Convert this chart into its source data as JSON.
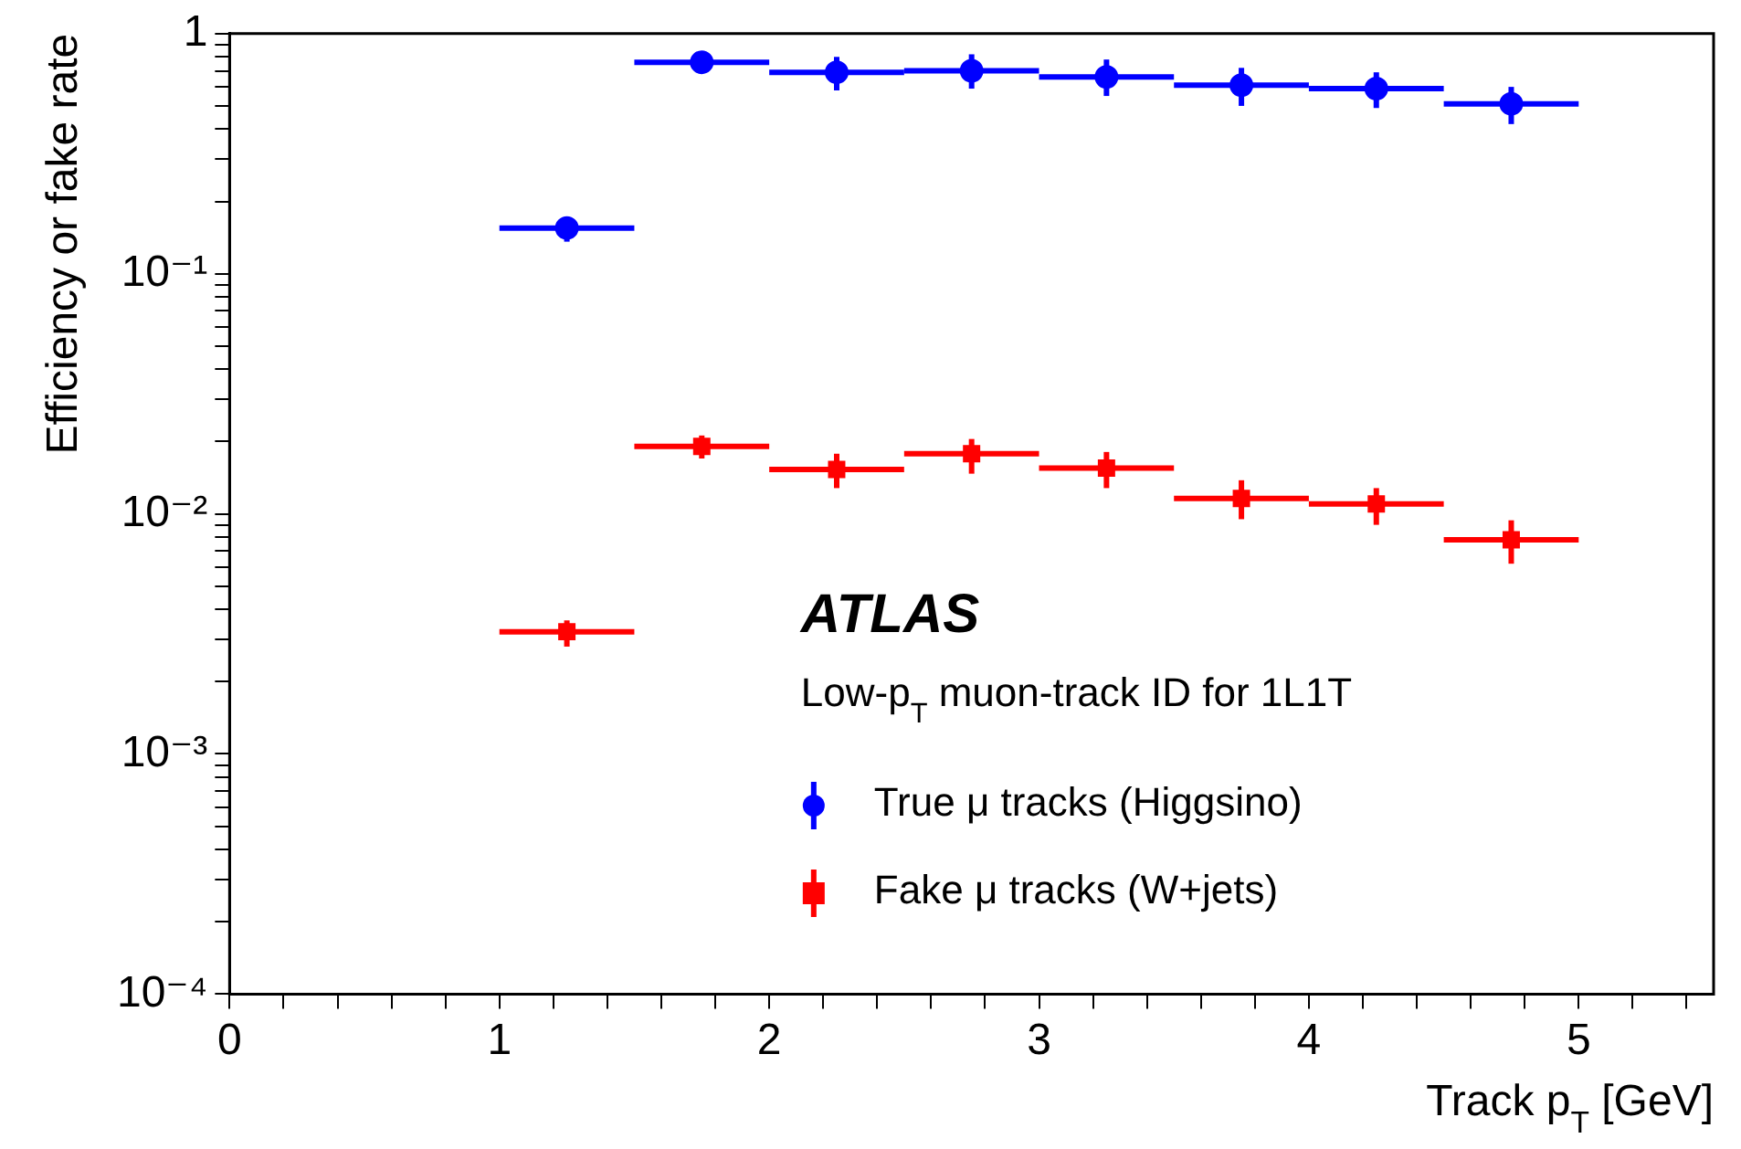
{
  "chart_data": {
    "type": "scatter",
    "xlabel": "Track p$_{T}$ [GeV]",
    "ylabel": "Efficiency or fake rate",
    "annotations": [
      "ATLAS",
      "Low-p$_{T}$ muon-track ID for 1L1T"
    ],
    "x": [
      1.25,
      1.75,
      2.25,
      2.75,
      3.25,
      3.75,
      4.25,
      4.75
    ],
    "series": [
      {
        "name": "True μ tracks (Higgsino)",
        "color": "#0000ff",
        "marker": "circle",
        "values": [
          0.155,
          0.76,
          0.69,
          0.7,
          0.66,
          0.61,
          0.59,
          0.51
        ],
        "errors": [
          [
            0.136,
            0.171
          ],
          [
            0.7,
            0.83
          ],
          [
            0.58,
            0.8
          ],
          [
            0.59,
            0.82
          ],
          [
            0.55,
            0.78
          ],
          [
            0.5,
            0.72
          ],
          [
            0.49,
            0.69
          ],
          [
            0.42,
            0.6
          ]
        ],
        "xerrors": [
          0.25,
          0.25,
          0.25,
          0.25,
          0.25,
          0.25,
          0.25,
          0.25
        ]
      },
      {
        "name": "Fake μ tracks (W+jets)",
        "color": "#ff0000",
        "marker": "square",
        "values": [
          0.00323,
          0.0191,
          0.0153,
          0.0178,
          0.0155,
          0.0116,
          0.011,
          0.0078
        ],
        "errors": [
          [
            0.0028,
            0.0036
          ],
          [
            0.017,
            0.0212
          ],
          [
            0.0128,
            0.0178
          ],
          [
            0.0147,
            0.0205
          ],
          [
            0.0128,
            0.0181
          ],
          [
            0.0095,
            0.0138
          ],
          [
            0.009,
            0.0128
          ],
          [
            0.0062,
            0.0094
          ]
        ],
        "xerrors": [
          0.25,
          0.25,
          0.25,
          0.25,
          0.25,
          0.25,
          0.25,
          0.25
        ]
      }
    ],
    "log": "y",
    "xlim": [
      0,
      5.5
    ],
    "ylim": [
      0.0001,
      1
    ],
    "xticks": [
      0,
      {
        "value": 0.2,
        "label": null
      },
      {
        "value": 0.4,
        "label": null
      },
      {
        "value": 0.6,
        "label": null
      },
      {
        "value": 0.8,
        "label": null
      },
      1,
      {
        "value": 1.2,
        "label": null
      },
      {
        "value": 1.4,
        "label": null
      },
      {
        "value": 1.6,
        "label": null
      },
      {
        "value": 1.8,
        "label": null
      },
      2,
      {
        "value": 2.2,
        "label": null
      },
      {
        "value": 2.4,
        "label": null
      },
      {
        "value": 2.6,
        "label": null
      },
      {
        "value": 2.8,
        "label": null
      },
      3,
      {
        "value": 3.2,
        "label": null
      },
      {
        "value": 3.4,
        "label": null
      },
      {
        "value": 3.6,
        "label": null
      },
      {
        "value": 3.8,
        "label": null
      },
      4,
      {
        "value": 4.2,
        "label": null
      },
      {
        "value": 4.4,
        "label": null
      },
      {
        "value": 4.6,
        "label": null
      },
      {
        "value": 4.8,
        "label": null
      },
      5,
      {
        "value": 5.2,
        "label": null
      },
      {
        "value": 5.4,
        "label": null
      }
    ],
    "yticks": [
      {
        "value": 0.0001,
        "label": "10⁻⁴"
      },
      {
        "value": 0.0002,
        "label": null
      },
      {
        "value": 0.0003,
        "label": null
      },
      {
        "value": 0.0004,
        "label": null
      },
      {
        "value": 0.0005,
        "label": null
      },
      {
        "value": 0.0006,
        "label": null
      },
      {
        "value": 0.0007,
        "label": null
      },
      {
        "value": 0.0008,
        "label": null
      },
      {
        "value": 0.0009,
        "label": null
      },
      {
        "value": 0.001,
        "label": "10⁻³"
      },
      {
        "value": 0.002,
        "label": null
      },
      {
        "value": 0.003,
        "label": null
      },
      {
        "value": 0.004,
        "label": null
      },
      {
        "value": 0.005,
        "label": null
      },
      {
        "value": 0.006,
        "label": null
      },
      {
        "value": 0.007,
        "label": null
      },
      {
        "value": 0.008,
        "label": null
      },
      {
        "value": 0.009,
        "label": null
      },
      {
        "value": 0.01,
        "label": "10⁻²"
      },
      {
        "value": 0.02,
        "label": null
      },
      {
        "value": 0.03,
        "label": null
      },
      {
        "value": 0.04,
        "label": null
      },
      {
        "value": 0.05,
        "label": null
      },
      {
        "value": 0.06,
        "label": null
      },
      {
        "value": 0.07,
        "label": null
      },
      {
        "value": 0.08,
        "label": null
      },
      {
        "value": 0.09,
        "label": null
      },
      {
        "value": 0.1,
        "label": "10⁻¹"
      },
      {
        "value": 0.2,
        "label": null
      },
      {
        "value": 0.3,
        "label": null
      },
      {
        "value": 0.4,
        "label": null
      },
      {
        "value": 0.5,
        "label": null
      },
      {
        "value": 0.6,
        "label": null
      },
      {
        "value": 0.7,
        "label": null
      },
      {
        "value": 0.8,
        "label": null
      },
      {
        "value": 0.9,
        "label": null
      },
      1
    ],
    "legend": "bottom right",
    "grid": false
  }
}
